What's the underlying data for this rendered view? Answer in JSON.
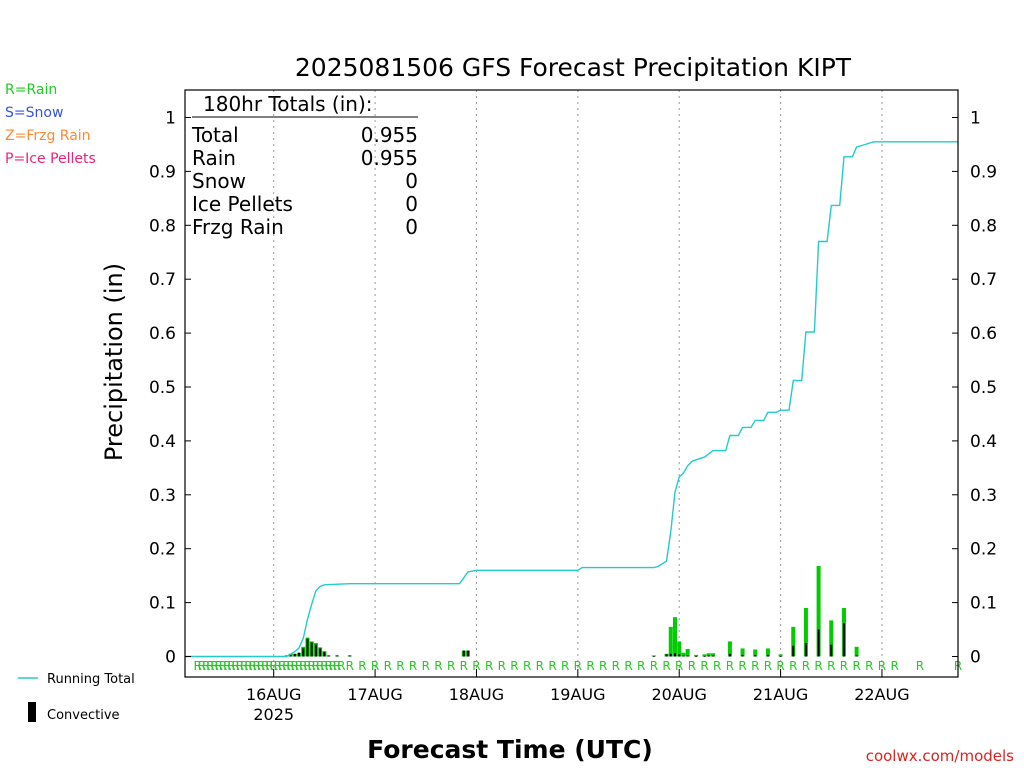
{
  "chart_data": {
    "type": "bar",
    "title": "2025081506 GFS Forecast Precipitation KIPT",
    "xlabel": "Forecast Time (UTC)",
    "ylabel": "Precipitation (in)",
    "ylim": [
      0,
      1.05
    ],
    "yticks": [
      0,
      0.1,
      0.2,
      0.3,
      0.4,
      0.5,
      0.6,
      0.7,
      0.8,
      0.9,
      1
    ],
    "ytick_labels": [
      "0",
      "0.1",
      "0.2",
      "0.3",
      "0.4",
      "0.5",
      "0.6",
      "0.7",
      "0.8",
      "0.9",
      "1"
    ],
    "x_range_hours": [
      -3,
      180
    ],
    "date_ticks": [
      {
        "label": "16AUG",
        "hour": 18,
        "sub": "2025"
      },
      {
        "label": "17AUG",
        "hour": 42
      },
      {
        "label": "18AUG",
        "hour": 66
      },
      {
        "label": "19AUG",
        "hour": 90
      },
      {
        "label": "20AUG",
        "hour": 114
      },
      {
        "label": "21AUG",
        "hour": 138
      },
      {
        "label": "22AUG",
        "hour": 162
      }
    ],
    "grid": "vertical dotted at each date",
    "totals": {
      "header": "180hr Totals (in):",
      "rows": [
        {
          "label": "Total",
          "value": "0.955"
        },
        {
          "label": "Rain",
          "value": "0.955"
        },
        {
          "label": "Snow",
          "value": "0"
        },
        {
          "label": "Ice Pellets",
          "value": "0"
        },
        {
          "label": "Frzg Rain",
          "value": "0"
        }
      ]
    },
    "type_legend": [
      {
        "text": "R=Rain",
        "color": "#22cc22"
      },
      {
        "text": "S=Snow",
        "color": "#3355dd"
      },
      {
        "text": "Z=Frzg Rain",
        "color": "#ff8833"
      },
      {
        "text": "P=Ice Pellets",
        "color": "#ee2277"
      }
    ],
    "series_legend": [
      {
        "name": "Running Total",
        "kind": "line",
        "color": "#22cccc"
      },
      {
        "name": "Convective",
        "kind": "bar",
        "color": "#000000"
      }
    ],
    "precip_bar_color": "#00cc00",
    "running_total_color": "#22cccc",
    "bars": [
      {
        "hour": 21,
        "total": 0.002,
        "convective": 0.002
      },
      {
        "hour": 22,
        "total": 0.005,
        "convective": 0.005
      },
      {
        "hour": 23,
        "total": 0.005,
        "convective": 0.005
      },
      {
        "hour": 24,
        "total": 0.007,
        "convective": 0.007
      },
      {
        "hour": 25,
        "total": 0.018,
        "convective": 0.015
      },
      {
        "hour": 26,
        "total": 0.035,
        "convective": 0.033
      },
      {
        "hour": 27,
        "total": 0.028,
        "convective": 0.026
      },
      {
        "hour": 28,
        "total": 0.025,
        "convective": 0.022
      },
      {
        "hour": 29,
        "total": 0.017,
        "convective": 0.015
      },
      {
        "hour": 30,
        "total": 0.01,
        "convective": 0.008
      },
      {
        "hour": 31,
        "total": 0.002,
        "convective": 0.002
      },
      {
        "hour": 33,
        "total": 0.002,
        "convective": 0.002
      },
      {
        "hour": 36,
        "total": 0.002,
        "convective": 0.002
      },
      {
        "hour": 63,
        "total": 0.011,
        "convective": 0.011
      },
      {
        "hour": 64,
        "total": 0.011,
        "convective": 0.011
      },
      {
        "hour": 108,
        "total": 0.002,
        "convective": 0.001
      },
      {
        "hour": 111,
        "total": 0.005,
        "convective": 0.004
      },
      {
        "hour": 112,
        "total": 0.055,
        "convective": 0.005
      },
      {
        "hour": 113,
        "total": 0.073,
        "convective": 0.006
      },
      {
        "hour": 114,
        "total": 0.028,
        "convective": 0.004
      },
      {
        "hour": 115,
        "total": 0.007,
        "convective": 0.002
      },
      {
        "hour": 116,
        "total": 0.014,
        "convective": 0.002
      },
      {
        "hour": 118,
        "total": 0.003,
        "convective": 0.001
      },
      {
        "hour": 120,
        "total": 0.004,
        "convective": 0.001
      },
      {
        "hour": 121,
        "total": 0.006,
        "convective": 0.002
      },
      {
        "hour": 122,
        "total": 0.006,
        "convective": 0.002
      },
      {
        "hour": 126,
        "total": 0.028,
        "convective": 0.005
      },
      {
        "hour": 129,
        "total": 0.015,
        "convective": 0.003
      },
      {
        "hour": 132,
        "total": 0.013,
        "convective": 0.003
      },
      {
        "hour": 135,
        "total": 0.015,
        "convective": 0.003
      },
      {
        "hour": 138,
        "total": 0.004,
        "convective": 0.001
      },
      {
        "hour": 141,
        "total": 0.055,
        "convective": 0.02
      },
      {
        "hour": 144,
        "total": 0.09,
        "convective": 0.025
      },
      {
        "hour": 147,
        "total": 0.168,
        "convective": 0.05
      },
      {
        "hour": 150,
        "total": 0.067,
        "convective": 0.022
      },
      {
        "hour": 153,
        "total": 0.09,
        "convective": 0.062
      },
      {
        "hour": 156,
        "total": 0.018,
        "convective": 0.002
      }
    ],
    "running_total": [
      [
        -3,
        0
      ],
      [
        21,
        0
      ],
      [
        22,
        0.004
      ],
      [
        23,
        0.009
      ],
      [
        24,
        0.016
      ],
      [
        25,
        0.034
      ],
      [
        26,
        0.069
      ],
      [
        27,
        0.097
      ],
      [
        28,
        0.122
      ],
      [
        29,
        0.13
      ],
      [
        30,
        0.133
      ],
      [
        36,
        0.135
      ],
      [
        48,
        0.135
      ],
      [
        62,
        0.135
      ],
      [
        63,
        0.146
      ],
      [
        64,
        0.157
      ],
      [
        66,
        0.16
      ],
      [
        90,
        0.16
      ],
      [
        91,
        0.165
      ],
      [
        108,
        0.165
      ],
      [
        109,
        0.167
      ],
      [
        110,
        0.172
      ],
      [
        111,
        0.177
      ],
      [
        112,
        0.232
      ],
      [
        113,
        0.305
      ],
      [
        114,
        0.333
      ],
      [
        115,
        0.34
      ],
      [
        116,
        0.354
      ],
      [
        117,
        0.362
      ],
      [
        118,
        0.365
      ],
      [
        120,
        0.37
      ],
      [
        121,
        0.376
      ],
      [
        122,
        0.382
      ],
      [
        123,
        0.382
      ],
      [
        124,
        0.382
      ],
      [
        125,
        0.382
      ],
      [
        126,
        0.41
      ],
      [
        128,
        0.41
      ],
      [
        129,
        0.425
      ],
      [
        131,
        0.425
      ],
      [
        132,
        0.438
      ],
      [
        134,
        0.438
      ],
      [
        135,
        0.453
      ],
      [
        137,
        0.453
      ],
      [
        138,
        0.457
      ],
      [
        140,
        0.457
      ],
      [
        141,
        0.512
      ],
      [
        143,
        0.512
      ],
      [
        144,
        0.602
      ],
      [
        146,
        0.602
      ],
      [
        147,
        0.77
      ],
      [
        149,
        0.77
      ],
      [
        150,
        0.837
      ],
      [
        152,
        0.837
      ],
      [
        153,
        0.927
      ],
      [
        155,
        0.927
      ],
      [
        156,
        0.945
      ],
      [
        158,
        0.95
      ],
      [
        160,
        0.955
      ],
      [
        180,
        0.955
      ]
    ],
    "precip_type_marks": {
      "letter": "R",
      "hours": [
        0,
        1,
        2,
        3,
        4,
        5,
        6,
        7,
        8,
        9,
        10,
        11,
        12,
        13,
        14,
        15,
        16,
        17,
        18,
        19,
        20,
        21,
        22,
        23,
        24,
        25,
        26,
        27,
        28,
        29,
        30,
        31,
        32,
        33,
        34,
        36,
        39,
        42,
        45,
        48,
        51,
        54,
        57,
        60,
        63,
        66,
        69,
        72,
        75,
        78,
        81,
        84,
        87,
        90,
        93,
        96,
        99,
        102,
        105,
        108,
        111,
        114,
        117,
        120,
        123,
        126,
        129,
        132,
        135,
        138,
        141,
        144,
        147,
        150,
        153,
        156,
        159,
        162,
        165,
        171,
        180
      ]
    }
  },
  "credit": "coolwx.com/models"
}
